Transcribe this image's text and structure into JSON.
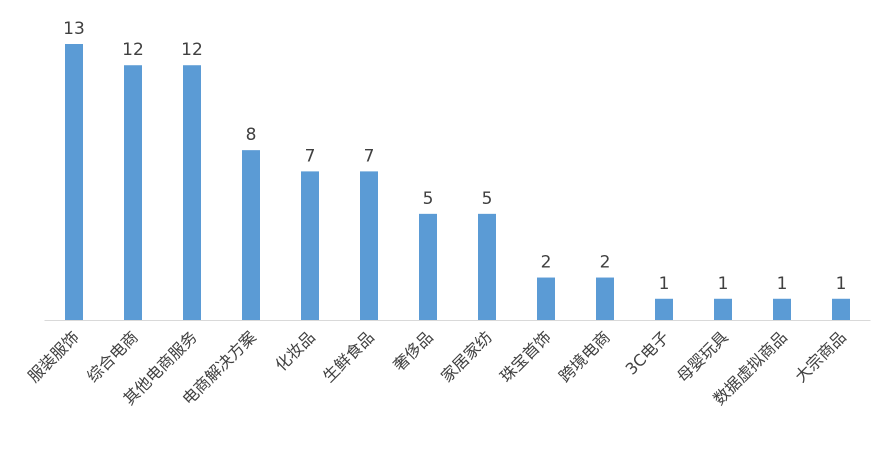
{
  "chart_data": {
    "type": "bar",
    "categories": [
      "服装服饰",
      "综合电商",
      "其他电商服务",
      "电商解决方案",
      "化妆品",
      "生鲜食品",
      "奢侈品",
      "家居家纺",
      "珠宝首饰",
      "跨境电商",
      "3C电子",
      "母婴玩具",
      "数据虚拟商品",
      "大宗商品"
    ],
    "values": [
      13,
      12,
      12,
      8,
      7,
      7,
      5,
      5,
      2,
      2,
      1,
      1,
      1,
      1
    ],
    "color": "#5b9bd5"
  }
}
